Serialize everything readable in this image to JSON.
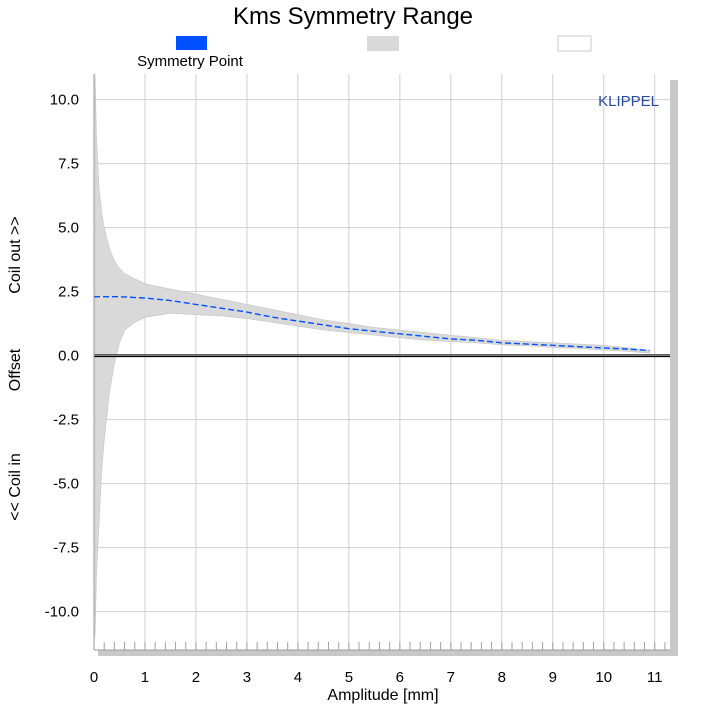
{
  "chart_data": {
    "type": "area",
    "title": "Kms Symmetry Range",
    "xlabel": "Amplitude [mm]",
    "ylabel_parts": [
      "Coil out >>",
      "Offset",
      "<< Coil in"
    ],
    "xlim": [
      0,
      11.3
    ],
    "ylim": [
      -11.5,
      11.0
    ],
    "xticks": [
      0,
      1,
      2,
      3,
      4,
      5,
      6,
      7,
      8,
      9,
      10,
      11
    ],
    "xtick_labels": [
      "0",
      "1",
      "2",
      "3",
      "4",
      "5",
      "6",
      "7",
      "8",
      "9",
      "10",
      "11"
    ],
    "yticks": [
      10.0,
      7.5,
      5.0,
      2.5,
      0.0,
      -2.5,
      -5.0,
      -7.5,
      -10.0
    ],
    "ytick_labels": [
      "10.0",
      "7.5",
      "5.0",
      "2.5",
      "0.0",
      "-2.5",
      "-5.0",
      "-7.5",
      "-10.0"
    ],
    "grid": true,
    "brand": "KLIPPEL",
    "legend": [
      {
        "label": "Symmetry Point",
        "color": "#0050ff"
      },
      {
        "label": "",
        "color": "#d9d9d9"
      },
      {
        "label": "",
        "color": "#ffffff"
      }
    ],
    "series": [
      {
        "name": "Symmetry Point",
        "color": "#0050ff",
        "x": [
          0,
          0.5,
          1,
          1.5,
          2,
          2.5,
          3,
          3.5,
          4,
          4.5,
          5,
          5.5,
          6,
          6.5,
          7,
          7.5,
          8,
          8.5,
          9,
          9.5,
          10,
          10.5,
          10.9
        ],
        "y": [
          2.3,
          2.3,
          2.25,
          2.15,
          2.0,
          1.85,
          1.7,
          1.5,
          1.35,
          1.2,
          1.05,
          0.95,
          0.85,
          0.75,
          0.65,
          0.6,
          0.5,
          0.45,
          0.4,
          0.35,
          0.3,
          0.25,
          0.2
        ]
      },
      {
        "name": "",
        "color": "#d9d9d9",
        "x": [
          0.02,
          0.05,
          0.1,
          0.15,
          0.2,
          0.3,
          0.4,
          0.5,
          0.6,
          0.8,
          1,
          1.5,
          2,
          2.5,
          3,
          3.5,
          4,
          4.5,
          5,
          5.5,
          6,
          6.5,
          7,
          7.5,
          8,
          8.5,
          9,
          9.5,
          10,
          10.5,
          10.9
        ],
        "y_upper": [
          11.0,
          8.5,
          6.5,
          5.6,
          5.0,
          4.2,
          3.7,
          3.4,
          3.2,
          3.0,
          2.8,
          2.6,
          2.4,
          2.2,
          2.0,
          1.8,
          1.6,
          1.4,
          1.25,
          1.1,
          1.0,
          0.9,
          0.8,
          0.7,
          0.6,
          0.55,
          0.5,
          0.45,
          0.4,
          0.3,
          0.2
        ],
        "y_lower": [
          -11.0,
          -8.5,
          -6.5,
          -4.5,
          -3.3,
          -1.5,
          -0.3,
          0.5,
          1.0,
          1.3,
          1.5,
          1.65,
          1.6,
          1.55,
          1.45,
          1.3,
          1.15,
          1.0,
          0.9,
          0.8,
          0.7,
          0.6,
          0.55,
          0.5,
          0.42,
          0.38,
          0.32,
          0.28,
          0.22,
          0.16,
          0.1
        ]
      }
    ]
  }
}
